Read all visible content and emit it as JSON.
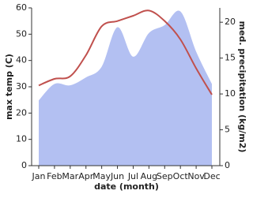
{
  "chart_data": {
    "type": "line_area",
    "xlabel": "date (month)",
    "ylabel": "max temp (C)",
    "y2label": "med. precipitation (kg/m2)",
    "categories": [
      "Jan",
      "Feb",
      "Mar",
      "Apr",
      "May",
      "Jun",
      "Jul",
      "Aug",
      "Sep",
      "Oct",
      "Nov",
      "Dec"
    ],
    "ylim": [
      0,
      60
    ],
    "yticks": [
      0,
      10,
      20,
      30,
      40,
      50,
      60
    ],
    "y2lim": [
      0,
      22
    ],
    "y2ticks": [
      0,
      5,
      10,
      15,
      20
    ],
    "series": [
      {
        "name": "max temp",
        "color": "#c0504d",
        "values": [
          30.5,
          33,
          34,
          42,
          53,
          55,
          57,
          59,
          55,
          48,
          37,
          27
        ]
      },
      {
        "name": "precipitation",
        "color": "#b3c0f2",
        "axis": "y2",
        "values": [
          9.1,
          11.4,
          11.2,
          12.3,
          13.8,
          19.3,
          15.2,
          18.5,
          19.6,
          21.5,
          15.9,
          11.4
        ]
      }
    ]
  }
}
